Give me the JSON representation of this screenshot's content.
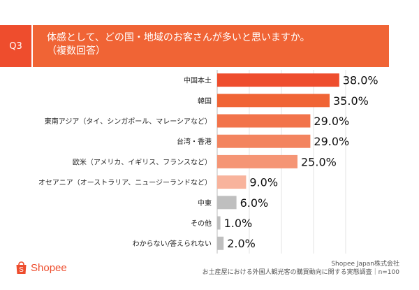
{
  "header": {
    "badge": "Q3",
    "title_line1": "体感として、どの国・地域のお客さんが多いと思いますか。",
    "title_line2": "（複数回答）"
  },
  "chart_data": {
    "type": "bar",
    "orientation": "horizontal",
    "title": "体感として、どの国・地域のお客さんが多いと思いますか。（複数回答）",
    "categories": [
      "中国本土",
      "韓国",
      "東南アジア（タイ、シンガポール、マレーシアなど）",
      "台湾・香港",
      "欧米（アメリカ、イギリス、フランスなど）",
      "オセアニア（オーストラリア、ニュージーランドなど）",
      "中東",
      "その他",
      "わからない/答えられない"
    ],
    "values": [
      38.0,
      35.0,
      29.0,
      29.0,
      25.0,
      9.0,
      6.0,
      1.0,
      2.0
    ],
    "value_labels": [
      "38.0%",
      "35.0%",
      "29.0%",
      "29.0%",
      "25.0%",
      "9.0%",
      "6.0%",
      "1.0%",
      "2.0%"
    ],
    "bar_colors": [
      "#ee4d2d",
      "#f06435",
      "#f2734a",
      "#f3845f",
      "#f59575",
      "#f8b39c",
      "#bfbfbf",
      "#bfbfbf",
      "#bfbfbf"
    ],
    "xlim": [
      0,
      40
    ],
    "grid": true,
    "xlabel": "",
    "ylabel": ""
  },
  "footer": {
    "company": "Shopee Japan株式会社",
    "survey": "お土産屋における外国人観光客の購買動向に関する実態調査｜n=100"
  },
  "brand": {
    "name": "Shopee",
    "logo_icon": "shopping-bag-icon",
    "color": "#ee4d2d"
  }
}
